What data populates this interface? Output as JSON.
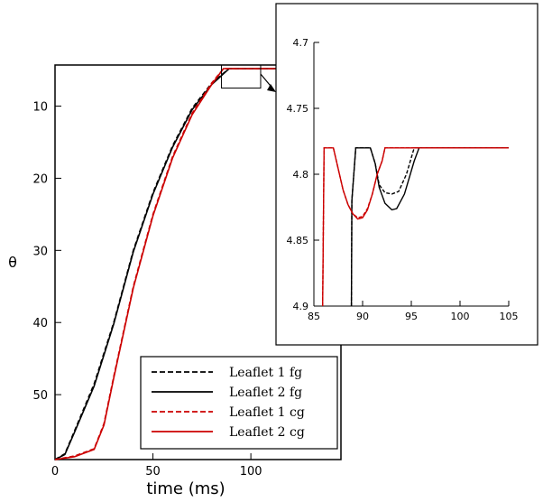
{
  "chart_data": [
    {
      "type": "line",
      "xlabel": "time (ms)",
      "ylabel": "θ",
      "xlim": [
        0,
        146
      ],
      "ylim": [
        59,
        4.3
      ],
      "y_inverted": true,
      "x_ticks": [
        0,
        50,
        100
      ],
      "y_ticks": [
        10,
        20,
        30,
        40,
        50
      ],
      "x_tick_labels": [
        "0",
        "50",
        "100"
      ],
      "y_tick_labels": [
        "10",
        "20",
        "30",
        "40",
        "50"
      ],
      "legend_position": "bottom-right",
      "series": [
        {
          "name": "Leaflet 1 fg",
          "color": "#000000",
          "style": "dashed",
          "x": [
            0,
            5,
            10,
            20,
            30,
            40,
            50,
            60,
            70,
            80,
            88.9,
            95,
            146
          ],
          "y": [
            59,
            58.2,
            55,
            48.5,
            40,
            30,
            22,
            15.5,
            10.3,
            6.8,
            4.8,
            4.8,
            4.8
          ]
        },
        {
          "name": "Leaflet 2 fg",
          "color": "#000000",
          "style": "solid",
          "x": [
            0,
            5,
            10,
            20,
            30,
            40,
            50,
            60,
            70,
            80,
            88.9,
            95,
            146
          ],
          "y": [
            59,
            58.3,
            55.2,
            48.8,
            40.2,
            30.2,
            22.2,
            15.7,
            10.5,
            7,
            4.8,
            4.8,
            4.8
          ]
        },
        {
          "name": "Leaflet 1 cg",
          "color": "#cc0000",
          "style": "dashed",
          "x": [
            0,
            10,
            20,
            25,
            30,
            40,
            50,
            60,
            70,
            80,
            86,
            92,
            146
          ],
          "y": [
            59,
            58.5,
            57.5,
            54,
            47.5,
            35,
            25,
            17,
            11,
            6.8,
            4.8,
            4.8,
            4.8
          ]
        },
        {
          "name": "Leaflet 2 cg",
          "color": "#cc0000",
          "style": "solid",
          "x": [
            0,
            10,
            20,
            25,
            30,
            40,
            50,
            60,
            70,
            80,
            86,
            92,
            146
          ],
          "y": [
            59,
            58.6,
            57.6,
            54.2,
            47.7,
            35.2,
            25.2,
            17.2,
            11.2,
            7,
            4.8,
            4.8,
            4.8
          ]
        }
      ]
    },
    {
      "type": "line",
      "xlim": [
        85,
        105
      ],
      "ylim": [
        4.9,
        4.7
      ],
      "y_inverted": true,
      "x_ticks": [
        85,
        90,
        95,
        100,
        105
      ],
      "y_ticks": [
        4.7,
        4.75,
        4.8,
        4.85,
        4.9
      ],
      "x_tick_labels": [
        "85",
        "90",
        "95",
        "100",
        "105"
      ],
      "y_tick_labels": [
        "4.7",
        "4.75",
        "4.8",
        "4.85",
        "4.9"
      ],
      "series": [
        {
          "name": "Leaflet 1 fg",
          "color": "#000000",
          "style": "dashed",
          "x": [
            88.85,
            88.9,
            89.3,
            90,
            90.8,
            91.3,
            91.7,
            92.3,
            93,
            93.7,
            94.5,
            95.3,
            105
          ],
          "y": [
            4.9,
            4.82,
            4.78,
            4.78,
            4.78,
            4.792,
            4.808,
            4.814,
            4.815,
            4.813,
            4.8,
            4.78,
            4.78
          ]
        },
        {
          "name": "Leaflet 2 fg",
          "color": "#000000",
          "style": "solid",
          "x": [
            88.85,
            88.9,
            89.3,
            90,
            90.8,
            91.3,
            91.7,
            92.3,
            93,
            93.5,
            94.3,
            95.3,
            95.8,
            105
          ],
          "y": [
            4.9,
            4.82,
            4.78,
            4.78,
            4.78,
            4.792,
            4.81,
            4.822,
            4.827,
            4.826,
            4.815,
            4.79,
            4.78,
            4.78
          ]
        },
        {
          "name": "Leaflet 1 cg",
          "color": "#cc0000",
          "style": "dashed",
          "x": [
            85.9,
            86.05,
            86.5,
            87,
            87.5,
            88,
            88.5,
            89,
            89.5,
            90,
            90.5,
            91,
            91.5,
            92,
            92.3,
            105
          ],
          "y": [
            4.9,
            4.78,
            4.78,
            4.78,
            4.796,
            4.812,
            4.823,
            4.83,
            4.833,
            4.832,
            4.826,
            4.815,
            4.8,
            4.79,
            4.78,
            4.78
          ]
        },
        {
          "name": "Leaflet 2 cg",
          "color": "#cc0000",
          "style": "solid",
          "x": [
            85.9,
            86.05,
            86.5,
            87,
            87.5,
            88,
            88.5,
            89,
            89.5,
            90,
            90.5,
            91,
            91.5,
            92,
            92.3,
            105
          ],
          "y": [
            4.9,
            4.78,
            4.78,
            4.78,
            4.796,
            4.812,
            4.823,
            4.83,
            4.834,
            4.833,
            4.827,
            4.815,
            4.8,
            4.79,
            4.78,
            4.78
          ]
        }
      ]
    }
  ]
}
